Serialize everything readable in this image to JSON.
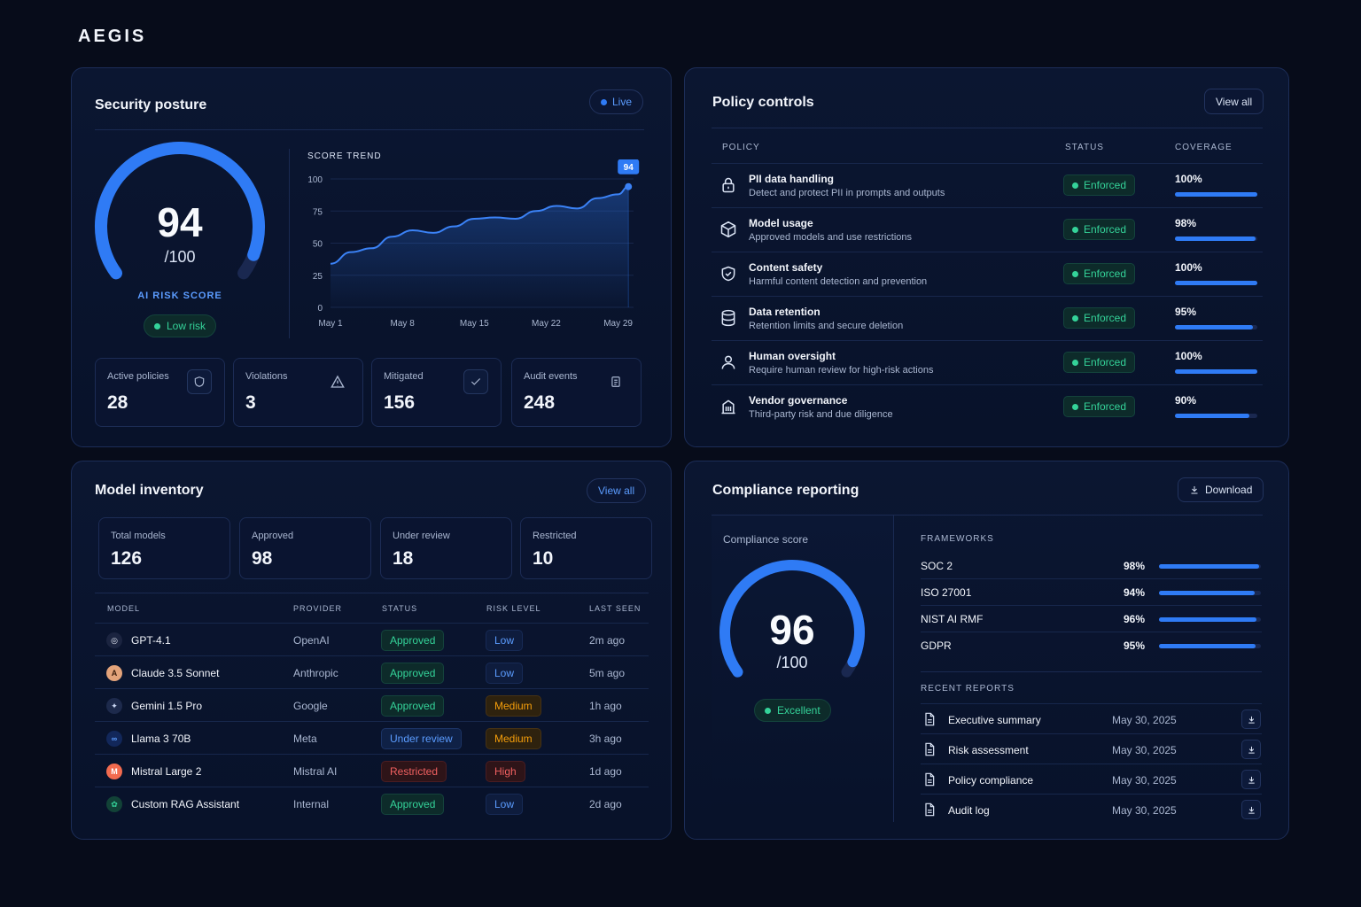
{
  "brand": "AEGIS",
  "security_posture": {
    "title": "Security posture",
    "live_label": "Live",
    "score": "94",
    "score_max": "/100",
    "score_fraction": 0.94,
    "score_label": "AI RISK SCORE",
    "risk_badge": "Low risk",
    "trend": {
      "title": "SCORE TREND",
      "y_ticks": [
        "100",
        "75",
        "50",
        "25",
        "0"
      ],
      "x_ticks": [
        "May 1",
        "May 8",
        "May 15",
        "May 22",
        "May 29"
      ],
      "marker_label": "94"
    },
    "stats": [
      {
        "label": "Active policies",
        "value": "28",
        "icon": "shield-icon"
      },
      {
        "label": "Violations",
        "value": "3",
        "icon": "warning-icon"
      },
      {
        "label": "Mitigated",
        "value": "156",
        "icon": "check-icon"
      },
      {
        "label": "Audit events",
        "value": "248",
        "icon": "document-icon"
      }
    ]
  },
  "chart_data": {
    "type": "line",
    "title": "SCORE TREND",
    "xlabel": "",
    "ylabel": "",
    "ylim": [
      0,
      100
    ],
    "x_ticks": [
      "May 1",
      "May 8",
      "May 15",
      "May 22",
      "May 29"
    ],
    "x": [
      1,
      3,
      5,
      7,
      9,
      11,
      13,
      15,
      17,
      19,
      21,
      23,
      25,
      27,
      29,
      30
    ],
    "series": [
      {
        "values": [
          34,
          43,
          46,
          55,
          60,
          58,
          63,
          69,
          70,
          69,
          75,
          79,
          77,
          85,
          88,
          94
        ]
      }
    ],
    "annotations": [
      {
        "x": 30,
        "y": 94,
        "text": "94"
      }
    ],
    "grid": true,
    "fill": "area-under-line"
  },
  "policy_controls": {
    "title": "Policy controls",
    "view_all": "View all",
    "columns": [
      "POLICY",
      "STATUS",
      "COVERAGE"
    ],
    "rows": [
      {
        "name": "PII data handling",
        "desc": "Detect and protect PII in prompts and outputs",
        "status": "Enforced",
        "coverage": "100%",
        "coverage_value": 1.0,
        "icon": "lock-icon"
      },
      {
        "name": "Model usage",
        "desc": "Approved models and use restrictions",
        "status": "Enforced",
        "coverage": "98%",
        "coverage_value": 0.98,
        "icon": "cube-icon"
      },
      {
        "name": "Content safety",
        "desc": "Harmful content detection and prevention",
        "status": "Enforced",
        "coverage": "100%",
        "coverage_value": 1.0,
        "icon": "shield-check-icon"
      },
      {
        "name": "Data retention",
        "desc": "Retention limits and secure deletion",
        "status": "Enforced",
        "coverage": "95%",
        "coverage_value": 0.95,
        "icon": "database-icon"
      },
      {
        "name": "Human oversight",
        "desc": "Require human review for high-risk actions",
        "status": "Enforced",
        "coverage": "100%",
        "coverage_value": 1.0,
        "icon": "user-icon"
      },
      {
        "name": "Vendor governance",
        "desc": "Third-party risk and due diligence",
        "status": "Enforced",
        "coverage": "90%",
        "coverage_value": 0.9,
        "icon": "building-icon"
      }
    ]
  },
  "model_inventory": {
    "title": "Model inventory",
    "view_all": "View all",
    "stats": [
      {
        "label": "Total models",
        "value": "126"
      },
      {
        "label": "Approved",
        "value": "98"
      },
      {
        "label": "Under review",
        "value": "18"
      },
      {
        "label": "Restricted",
        "value": "10"
      }
    ],
    "columns": [
      "MODEL",
      "PROVIDER",
      "STATUS",
      "RISK LEVEL",
      "LAST SEEN"
    ],
    "rows": [
      {
        "model": "GPT-4.1",
        "provider": "OpenAI",
        "status": "Approved",
        "risk": "Low",
        "last_seen": "2m ago",
        "icon": "openai-icon"
      },
      {
        "model": "Claude 3.5 Sonnet",
        "provider": "Anthropic",
        "status": "Approved",
        "risk": "Low",
        "last_seen": "5m ago",
        "icon": "anthropic-icon"
      },
      {
        "model": "Gemini 1.5 Pro",
        "provider": "Google",
        "status": "Approved",
        "risk": "Medium",
        "last_seen": "1h ago",
        "icon": "gemini-icon"
      },
      {
        "model": "Llama 3 70B",
        "provider": "Meta",
        "status": "Under review",
        "risk": "Medium",
        "last_seen": "3h ago",
        "icon": "meta-icon"
      },
      {
        "model": "Mistral Large 2",
        "provider": "Mistral AI",
        "status": "Restricted",
        "risk": "High",
        "last_seen": "1d ago",
        "icon": "mistral-icon"
      },
      {
        "model": "Custom RAG Assistant",
        "provider": "Internal",
        "status": "Approved",
        "risk": "Low",
        "last_seen": "2d ago",
        "icon": "custom-model-icon"
      }
    ]
  },
  "compliance": {
    "title": "Compliance reporting",
    "download": "Download",
    "score_label": "Compliance score",
    "score": "96",
    "score_max": "/100",
    "score_fraction": 0.96,
    "badge": "Excellent",
    "frameworks_label": "FRAMEWORKS",
    "frameworks": [
      {
        "name": "SOC 2",
        "pct": "98%",
        "value": 0.98
      },
      {
        "name": "ISO 27001",
        "pct": "94%",
        "value": 0.94
      },
      {
        "name": "NIST AI RMF",
        "pct": "96%",
        "value": 0.96
      },
      {
        "name": "GDPR",
        "pct": "95%",
        "value": 0.95
      }
    ],
    "reports_label": "RECENT REPORTS",
    "reports": [
      {
        "name": "Executive summary",
        "date": "May 30, 2025"
      },
      {
        "name": "Risk assessment",
        "date": "May 30, 2025"
      },
      {
        "name": "Policy compliance",
        "date": "May 30, 2025"
      },
      {
        "name": "Audit log",
        "date": "May 30, 2025"
      }
    ]
  },
  "colors": {
    "background": "#070c1a",
    "panel": "#0b1631",
    "accent_blue": "#2f7bf5",
    "success_green": "#34d399",
    "warning_orange": "#f59e0b",
    "danger_red": "#f06060"
  }
}
